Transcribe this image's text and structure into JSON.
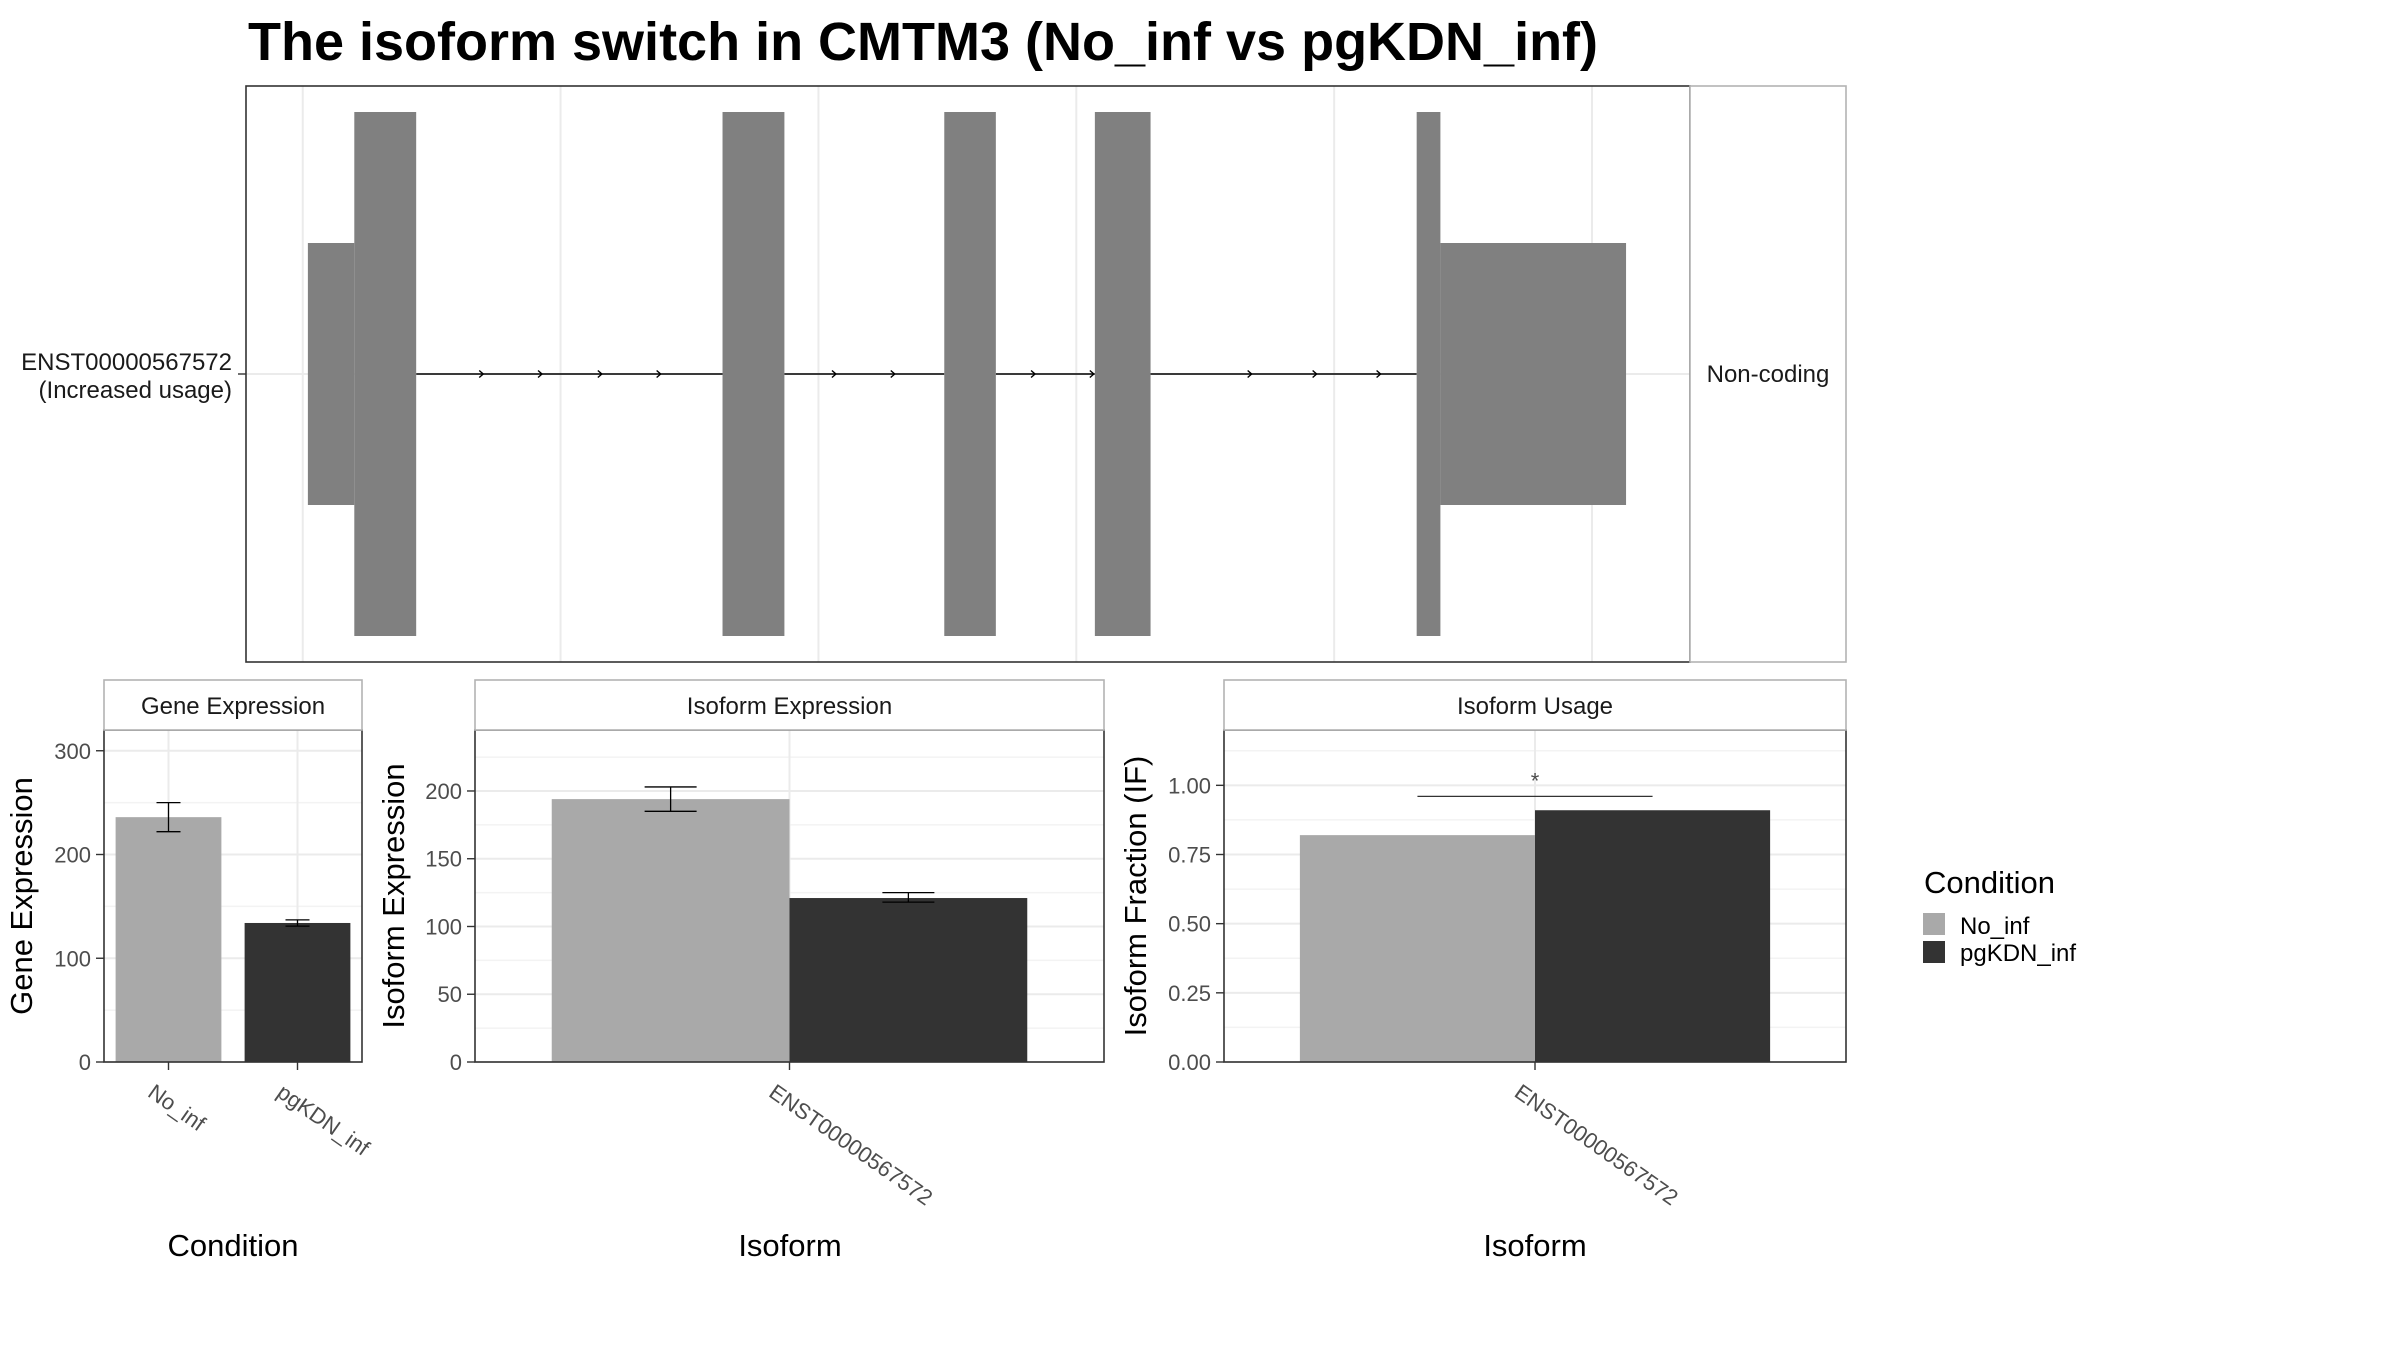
{
  "title": "The isoform switch in CMTM3 (No_inf vs pgKDN_inf)",
  "colors": {
    "No_inf": "#a9a9a9",
    "pgKDN_inf": "#333333",
    "transcript": "#808080",
    "panel_border": "#333333",
    "strip_fill": "#ffffff",
    "grid": "#ebebeb"
  },
  "structure": {
    "label_line1": "ENST00000567572",
    "label_line2": "(Increased usage)",
    "side_label": "Non-coding",
    "xlim": [
      0,
      1000
    ],
    "exons": [
      {
        "start": 5,
        "end": 50,
        "height": "utr"
      },
      {
        "start": 50,
        "end": 110,
        "height": "cds"
      },
      {
        "start": 407,
        "end": 467,
        "height": "cds"
      },
      {
        "start": 622,
        "end": 672,
        "height": "cds"
      },
      {
        "start": 768,
        "end": 822,
        "height": "cds"
      },
      {
        "start": 1080,
        "end": 1103,
        "height": "cds"
      },
      {
        "start": 1103,
        "end": 1283,
        "height": "utr"
      }
    ],
    "xlim_full": [
      -55,
      1345
    ],
    "arrows": [
      175,
      232,
      290,
      347,
      460,
      517,
      574,
      710,
      767,
      920,
      983,
      1045
    ]
  },
  "legend": {
    "title": "Condition",
    "items": [
      "No_inf",
      "pgKDN_inf"
    ]
  },
  "chart_data": [
    {
      "type": "bar",
      "title": "Gene Expression",
      "xlabel": "Condition",
      "ylabel": "Gene Expression",
      "categories": [
        "No_inf",
        "pgKDN_inf"
      ],
      "values": [
        236,
        134
      ],
      "errors": [
        [
          222,
          250
        ],
        [
          131,
          137
        ]
      ],
      "ylim": [
        0,
        320
      ],
      "yticks": [
        0,
        100,
        200,
        300
      ]
    },
    {
      "type": "bar",
      "title": "Isoform Expression",
      "xlabel": "Isoform",
      "ylabel": "Isoform Expression",
      "categories": [
        "ENST00000567572"
      ],
      "series": [
        {
          "name": "No_inf",
          "values": [
            194
          ],
          "errors": [
            [
              185,
              203
            ]
          ]
        },
        {
          "name": "pgKDN_inf",
          "values": [
            121
          ],
          "errors": [
            [
              118,
              125
            ]
          ]
        }
      ],
      "ylim": [
        0,
        245
      ],
      "yticks": [
        0,
        50,
        100,
        150,
        200
      ]
    },
    {
      "type": "bar",
      "title": "Isoform Usage",
      "xlabel": "Isoform",
      "ylabel": "Isoform Fraction (IF)",
      "categories": [
        "ENST00000567572"
      ],
      "series": [
        {
          "name": "No_inf",
          "values": [
            0.82
          ]
        },
        {
          "name": "pgKDN_inf",
          "values": [
            0.91
          ]
        }
      ],
      "ylim": [
        0,
        1.2
      ],
      "yticks": [
        "0.00",
        "0.25",
        "0.50",
        "0.75",
        "1.00"
      ],
      "significance": {
        "label": "*",
        "y": 0.96
      }
    }
  ]
}
